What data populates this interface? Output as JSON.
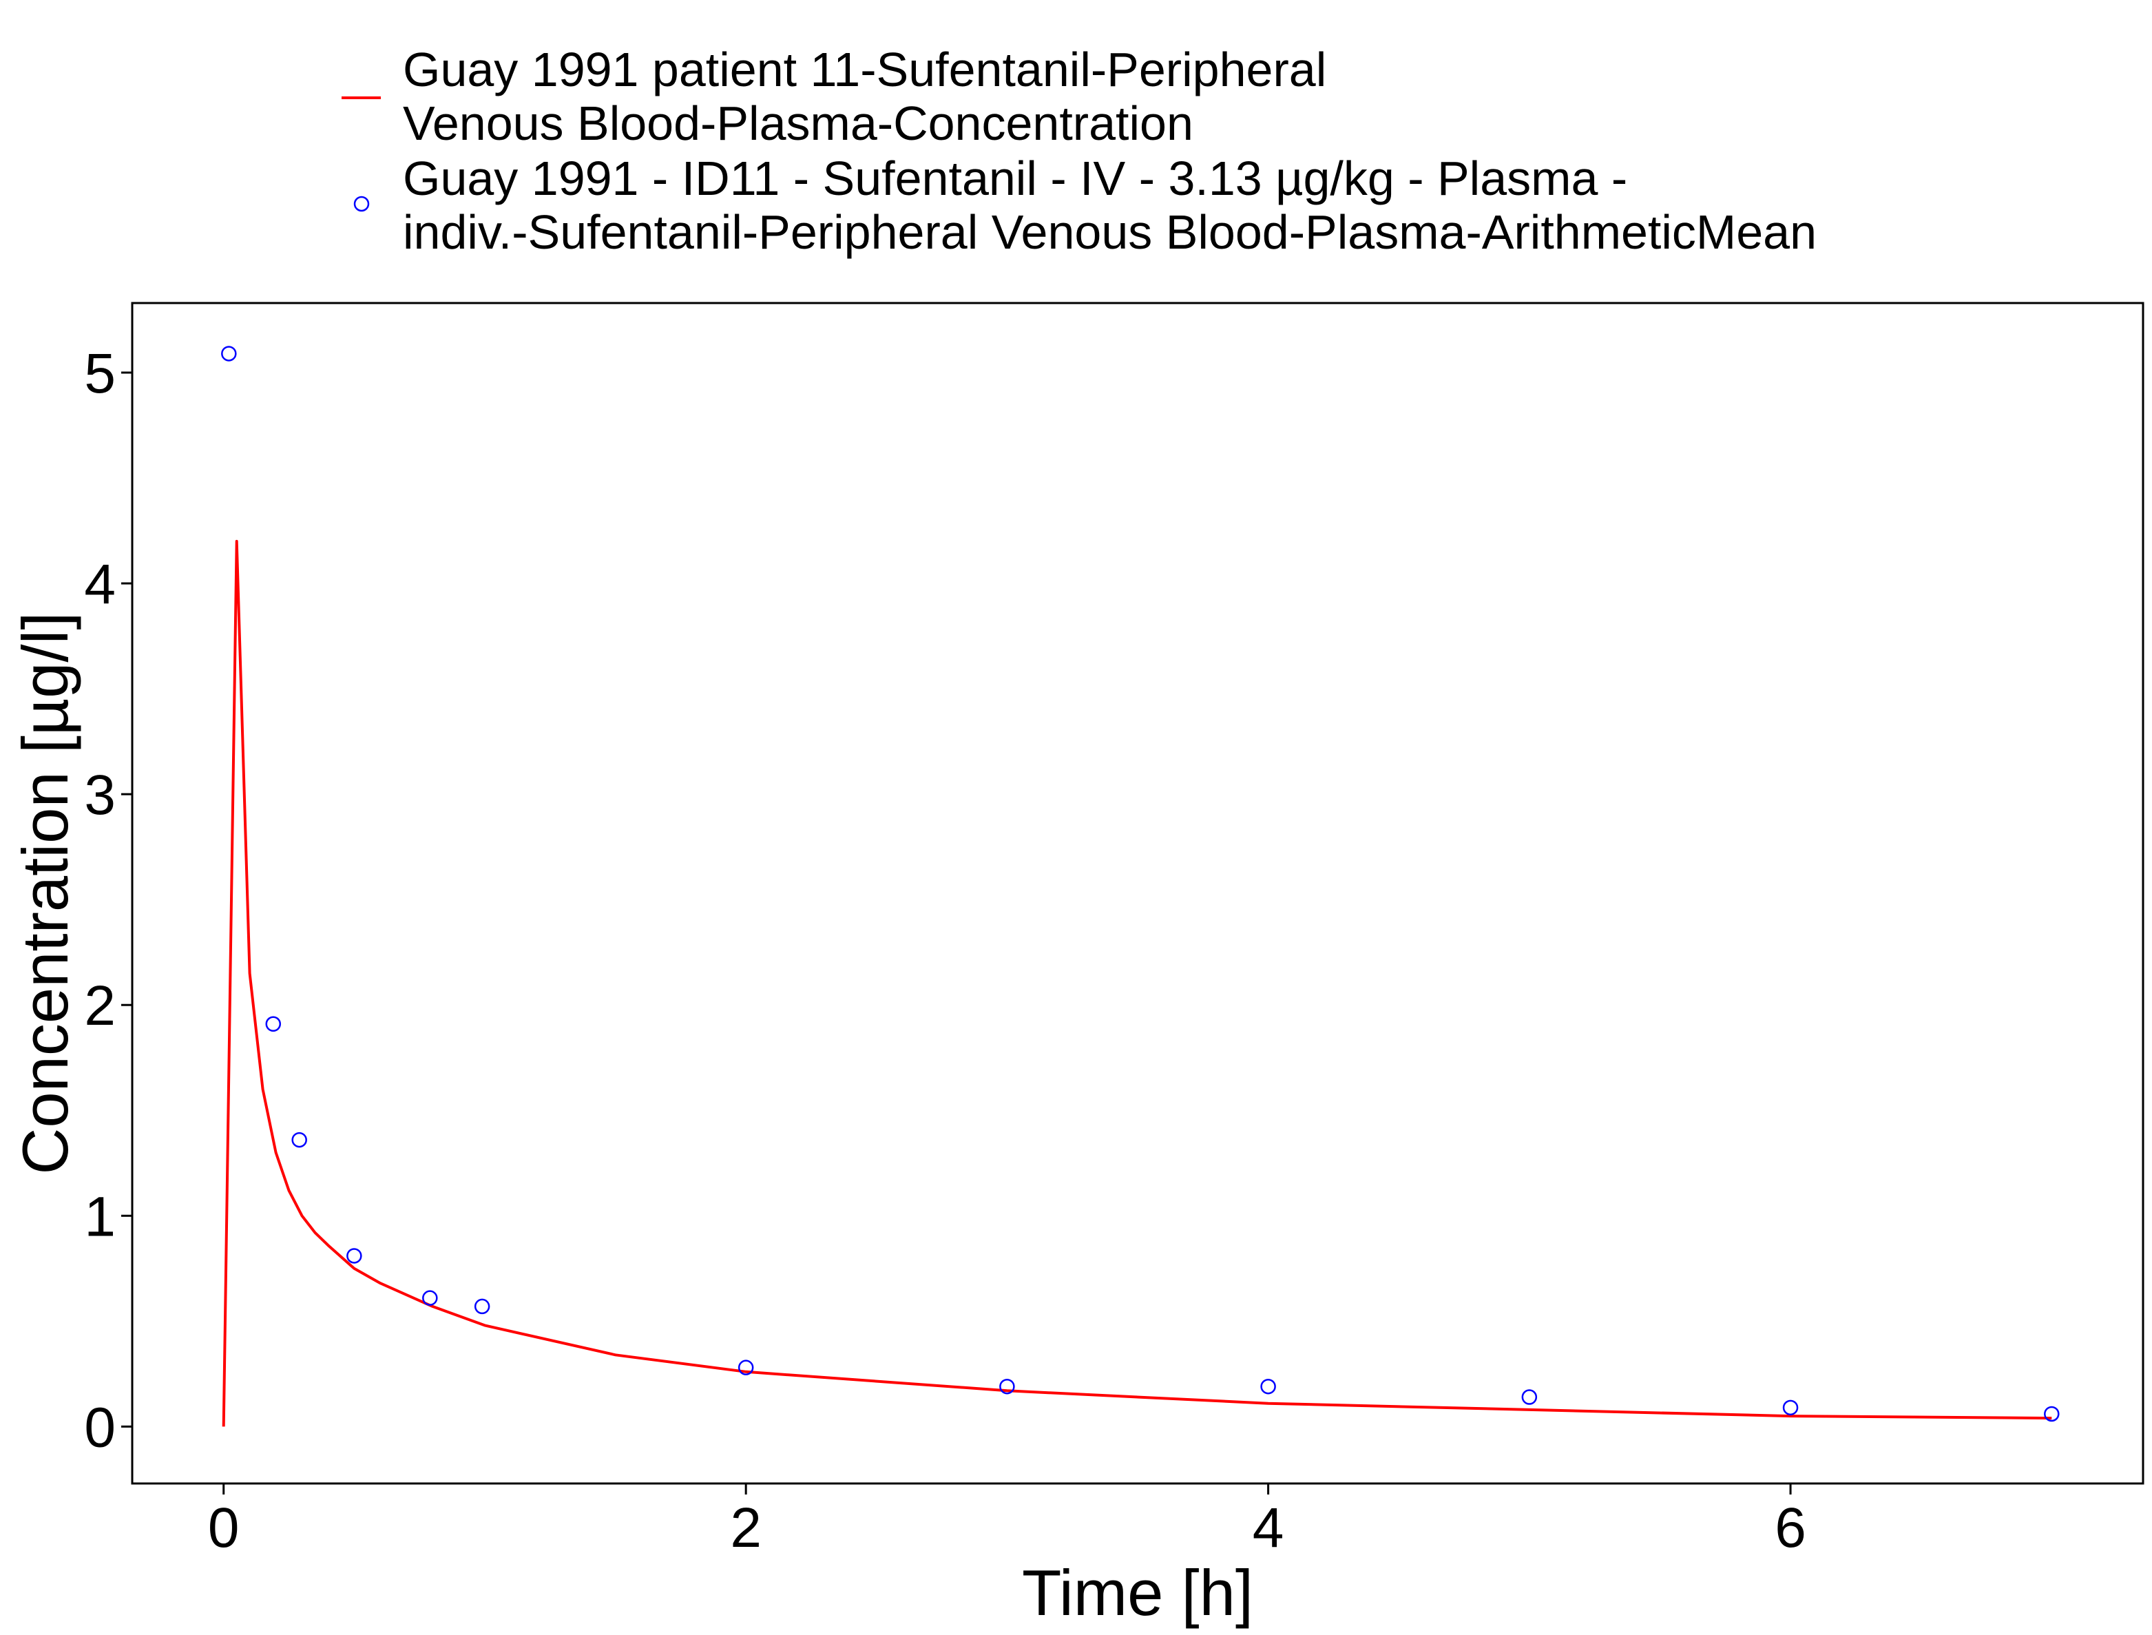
{
  "chart_data": {
    "type": "line",
    "title": "",
    "xlabel": "Time [h]",
    "ylabel": "Concentration [µg/l]",
    "xlim": [
      -0.35,
      7.35
    ],
    "ylim": [
      -0.27,
      5.33
    ],
    "xticks": [
      0,
      2,
      4,
      6
    ],
    "yticks": [
      0,
      1,
      2,
      3,
      4,
      5
    ],
    "grid": false,
    "legend_position": "top",
    "series": [
      {
        "name": "Guay 1991 patient 11-Sufentanil-Peripheral Venous Blood-Plasma-Concentration",
        "name_lines": [
          "Guay 1991 patient 11-Sufentanil-Peripheral",
          "Venous Blood-Plasma-Concentration"
        ],
        "kind": "line",
        "color": "#ff0000",
        "x": [
          0,
          0.05,
          0.1,
          0.15,
          0.2,
          0.25,
          0.3,
          0.35,
          0.4,
          0.5,
          0.6,
          0.8,
          1.0,
          1.5,
          2.0,
          3.0,
          4.0,
          5.0,
          6.0,
          7.0
        ],
        "y": [
          0.0,
          4.2,
          2.15,
          1.6,
          1.3,
          1.12,
          1.0,
          0.92,
          0.86,
          0.75,
          0.68,
          0.57,
          0.48,
          0.34,
          0.26,
          0.17,
          0.11,
          0.08,
          0.05,
          0.04
        ]
      },
      {
        "name": "Guay 1991 - ID11 - Sufentanil - IV - 3.13 µg/kg - Plasma - indiv.-Sufentanil-Peripheral Venous Blood-Plasma-ArithmeticMean",
        "name_lines": [
          "Guay 1991 - ID11 - Sufentanil - IV - 3.13 µg/kg - Plasma -",
          "indiv.-Sufentanil-Peripheral Venous Blood-Plasma-ArithmeticMean"
        ],
        "kind": "points",
        "color": "#0000ff",
        "x": [
          0.02,
          0.19,
          0.29,
          0.5,
          0.79,
          0.99,
          2.0,
          3.0,
          4.0,
          5.0,
          6.0,
          7.0
        ],
        "y": [
          5.09,
          1.91,
          1.36,
          0.81,
          0.61,
          0.57,
          0.28,
          0.19,
          0.19,
          0.14,
          0.09,
          0.06
        ]
      }
    ]
  }
}
